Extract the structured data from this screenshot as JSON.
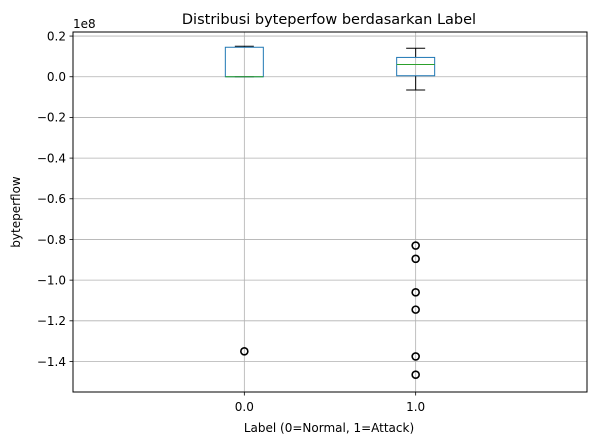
{
  "chart_data": {
    "type": "boxplot",
    "title": "Distribusi byteperfow berdasarkan Label",
    "xlabel": "Label (0=Normal, 1=Attack)",
    "ylabel": "byteperflow",
    "offset_label": "1e8",
    "categories": [
      "0.0",
      "1.0"
    ],
    "ylim": [
      -1.55,
      0.22
    ],
    "yticks": [
      0.2,
      0.0,
      -0.2,
      -0.4,
      -0.6,
      -0.8,
      -1.0,
      -1.2,
      -1.4
    ],
    "ytick_labels": [
      "0.2",
      "0.0",
      "−0.2",
      "−0.4",
      "−0.6",
      "−0.8",
      "−1.0",
      "−1.2",
      "−1.4"
    ],
    "grid": true,
    "boxes": [
      {
        "category": "0.0",
        "whisker_low": 0.0,
        "q1": 0.0,
        "median": 0.0,
        "q3": 0.145,
        "whisker_high": 0.15,
        "outliers": [
          -1.35
        ]
      },
      {
        "category": "1.0",
        "whisker_low": -0.065,
        "q1": 0.005,
        "median": 0.06,
        "q3": 0.095,
        "whisker_high": 0.14,
        "outliers": [
          -0.83,
          -0.895,
          -1.06,
          -1.145,
          -1.375,
          -1.465
        ]
      }
    ],
    "colors": {
      "box": "#1f77b4",
      "median": "#2ca02c",
      "whisker": "#000000",
      "grid": "#b0b0b0"
    }
  }
}
